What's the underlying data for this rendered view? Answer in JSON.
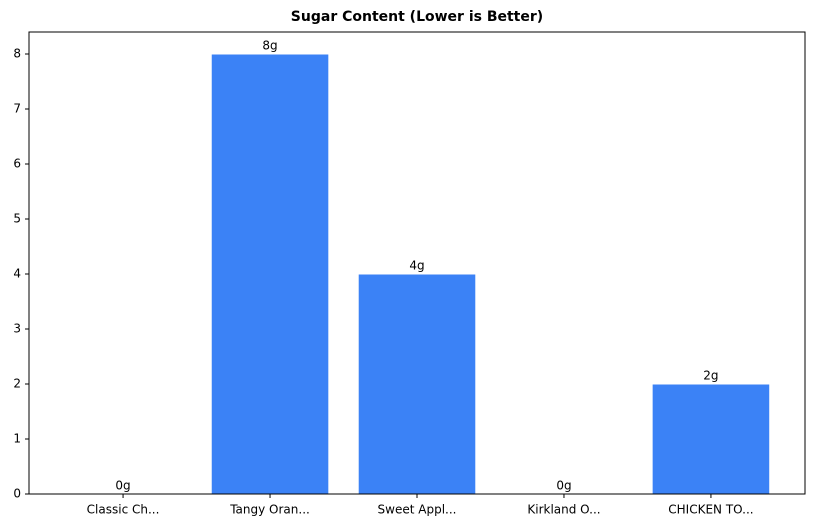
{
  "chart_data": {
    "type": "bar",
    "title": "Sugar Content (Lower is Better)",
    "categories": [
      "Classic Ch...",
      "Tangy Oran...",
      "Sweet Appl...",
      "Kirkland O...",
      "CHICKEN TO..."
    ],
    "values": [
      0,
      8,
      4,
      0,
      2
    ],
    "value_labels": [
      "0g",
      "8g",
      "4g",
      "0g",
      "2g"
    ],
    "color": "#3b82f6",
    "ylim": [
      0,
      8.4
    ],
    "yticks": [
      0,
      1,
      2,
      3,
      4,
      5,
      6,
      7,
      8
    ],
    "grid": false
  }
}
